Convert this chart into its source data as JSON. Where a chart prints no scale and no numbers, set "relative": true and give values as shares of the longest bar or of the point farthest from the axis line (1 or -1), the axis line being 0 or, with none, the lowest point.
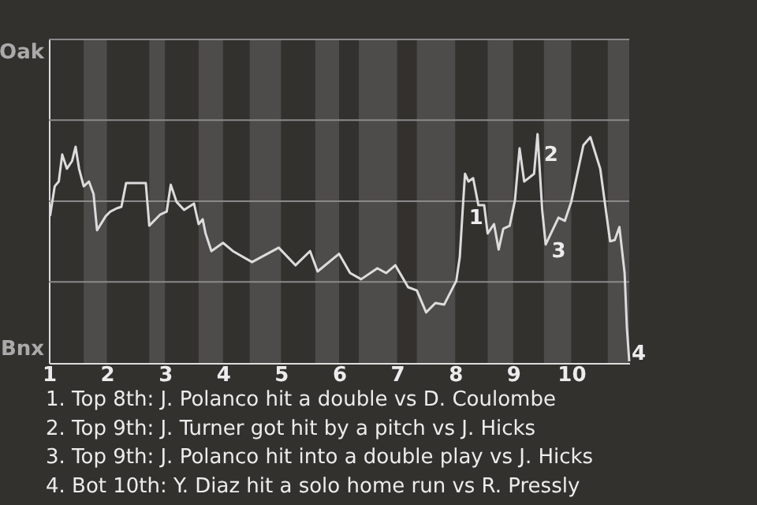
{
  "chart_data": {
    "type": "line",
    "color": "#dcdcdc",
    "relative": true,
    "ref_lines": [
      {
        "axis": "y",
        "value": 0.354,
        "color": "#8a8a8a"
      },
      {
        "axis": "y",
        "value": 0.707,
        "color": "#8a8a8a"
      },
      {
        "axis": "y",
        "value": 1.061,
        "color": "#8a8a8a"
      }
    ],
    "x": [
      1.02,
      1.1,
      1.17,
      1.23,
      1.31,
      1.4,
      1.46,
      1.52,
      1.6,
      1.69,
      1.77,
      1.83,
      1.98,
      2.06,
      2.17,
      2.25,
      2.33,
      2.67,
      2.73,
      2.92,
      3.03,
      3.1,
      3.2,
      3.33,
      3.5,
      3.58,
      3.65,
      3.7,
      3.8,
      4.0,
      4.17,
      4.5,
      4.96,
      5.25,
      5.5,
      5.63,
      6.0,
      6.19,
      6.38,
      6.66,
      6.81,
      6.97,
      7.19,
      7.34,
      7.5,
      7.66,
      7.81,
      8.02,
      8.08,
      8.13,
      8.17,
      8.23,
      8.31,
      8.4,
      8.5,
      8.56,
      8.67,
      8.75,
      8.83,
      8.94,
      9.03,
      9.11,
      9.19,
      9.36,
      9.42,
      9.5,
      9.56,
      9.78,
      9.89,
      10.0,
      10.21,
      10.33,
      10.5,
      10.67,
      10.75,
      10.83,
      10.92,
      10.96,
      11.0
    ],
    "values": [
      0.642,
      0.772,
      0.793,
      0.911,
      0.849,
      0.883,
      0.945,
      0.849,
      0.772,
      0.793,
      0.738,
      0.58,
      0.642,
      0.662,
      0.676,
      0.683,
      0.786,
      0.786,
      0.6,
      0.649,
      0.662,
      0.779,
      0.704,
      0.669,
      0.697,
      0.607,
      0.628,
      0.566,
      0.489,
      0.525,
      0.489,
      0.441,
      0.504,
      0.427,
      0.489,
      0.4,
      0.477,
      0.393,
      0.366,
      0.414,
      0.393,
      0.427,
      0.331,
      0.317,
      0.221,
      0.262,
      0.255,
      0.359,
      0.463,
      0.669,
      0.827,
      0.793,
      0.808,
      0.69,
      0.69,
      0.566,
      0.607,
      0.496,
      0.587,
      0.6,
      0.71,
      0.938,
      0.793,
      0.827,
      1,
      0.669,
      0.518,
      0.635,
      0.621,
      0.704,
      0.952,
      0.987,
      0.849,
      0.532,
      0.537,
      0.594,
      0.393,
      0.151,
      0.007
    ],
    "xlim": [
      1,
      11
    ],
    "xticks": [
      1,
      2,
      3,
      4,
      5,
      6,
      7,
      8,
      9,
      10
    ],
    "bands": [
      {
        "axis": "x",
        "from": 1.6,
        "to": 2.0,
        "color": "#4e4c4a"
      },
      {
        "axis": "x",
        "from": 2.73,
        "to": 3.0,
        "color": "#4e4c4a"
      },
      {
        "axis": "x",
        "from": 3.58,
        "to": 4.0,
        "color": "#4e4c4a"
      },
      {
        "axis": "x",
        "from": 4.46,
        "to": 5.0,
        "color": "#4e4c4a"
      },
      {
        "axis": "x",
        "from": 5.59,
        "to": 6.0,
        "color": "#4e4c4a"
      },
      {
        "axis": "x",
        "from": 6.34,
        "to": 7.0,
        "color": "#4e4c4a"
      },
      {
        "axis": "x",
        "from": 7.34,
        "to": 8.0,
        "color": "#4e4c4a"
      },
      {
        "axis": "x",
        "from": 8.56,
        "to": 9.0,
        "color": "#4e4c4a"
      },
      {
        "axis": "x",
        "from": 9.53,
        "to": 10.0,
        "color": "#4e4c4a"
      },
      {
        "axis": "x",
        "from": 10.63,
        "to": 11.0,
        "color": "#4e4c4a"
      }
    ],
    "annotations": [
      "Oak",
      "Bnx",
      {
        "text": "1",
        "x": 8.13,
        "y": 0.669
      },
      {
        "text": "2",
        "x": 9.42,
        "y": 1
      },
      {
        "text": "3",
        "x": 9.5,
        "y": 0.669
      },
      {
        "text": "4",
        "x": 10.96,
        "y": 0.151
      },
      "1. Top 8th: J. Polanco hit a double vs D. Coulombe",
      "2. Top 9th: J. Turner got hit by a pitch vs J. Hicks",
      "3. Top 9th: J. Polanco hit into a double play vs J. Hicks",
      "4. Bot 10th: Y. Diaz hit a solo home run vs R. Pressly"
    ]
  }
}
